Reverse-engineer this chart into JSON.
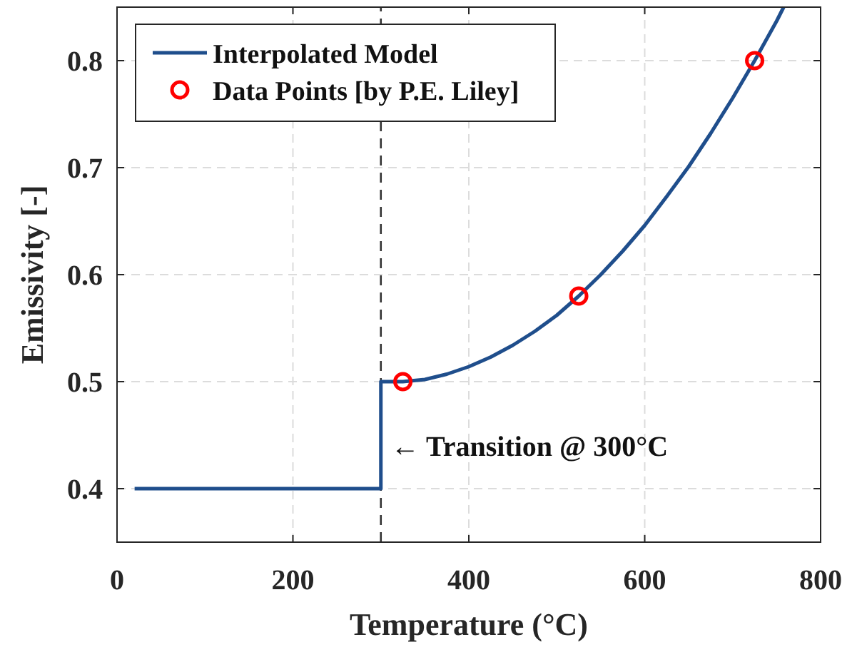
{
  "chart_data": {
    "type": "line",
    "xlabel": "Temperature (°C)",
    "ylabel": "Emissivity [-]",
    "xlim": [
      0,
      800
    ],
    "xticks": [
      0,
      200,
      400,
      600,
      800
    ],
    "ylim": [
      0.35,
      0.85
    ],
    "yticks": [
      0.4,
      0.5,
      0.6,
      0.7,
      0.8
    ],
    "grid": true,
    "legend": "top left",
    "series": [
      {
        "name": "Interpolated Model",
        "type": "line",
        "color": "#1f4e8c",
        "marker": "none",
        "line_style": "solid",
        "x": [
          20,
          300,
          300,
          325,
          350,
          375,
          400,
          425,
          450,
          475,
          500,
          525,
          550,
          575,
          600,
          625,
          650,
          675,
          700,
          725,
          750,
          758
        ],
        "values": [
          0.4,
          0.4,
          0.5,
          0.5,
          0.502,
          0.507,
          0.514,
          0.523,
          0.534,
          0.547,
          0.562,
          0.58,
          0.6,
          0.622,
          0.646,
          0.673,
          0.701,
          0.732,
          0.765,
          0.8,
          0.837,
          0.85
        ]
      },
      {
        "name": "Data Points [by P.E. Liley]",
        "type": "scatter",
        "color": "#ff0000",
        "marker": "circle",
        "x": [
          325,
          525,
          725
        ],
        "values": [
          0.5,
          0.58,
          0.8
        ]
      }
    ],
    "ref_lines": [
      {
        "axis": "x",
        "value": 300,
        "color": "#333333",
        "line_style": "dashed"
      }
    ],
    "annotations": [
      {
        "text": "← Transition @ 300°C",
        "x": 300,
        "y": 0.44
      }
    ]
  }
}
